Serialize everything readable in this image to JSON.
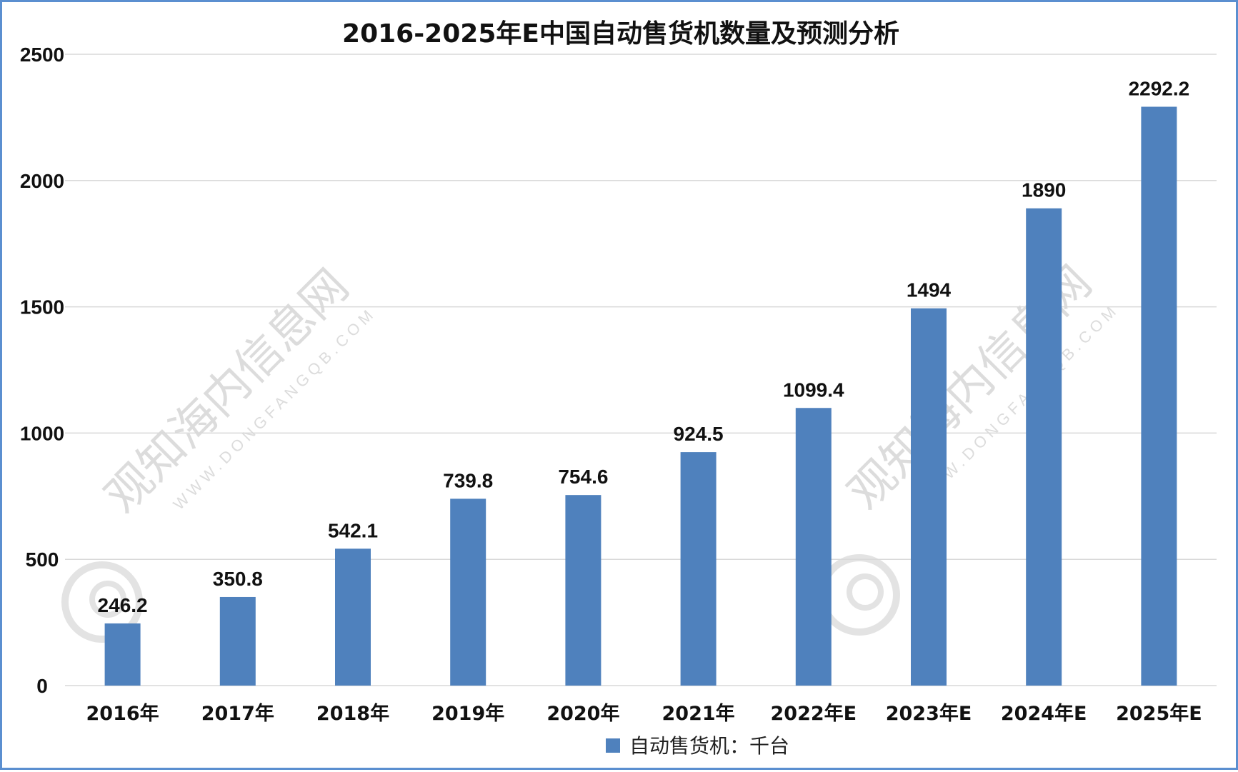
{
  "chart_data": {
    "type": "bar",
    "title": "2016-2025年E中国自动售货机数量及预测分析",
    "categories": [
      "2016年",
      "2017年",
      "2018年",
      "2019年",
      "2020年",
      "2021年",
      "2022年E",
      "2023年E",
      "2024年E",
      "2025年E"
    ],
    "series": [
      {
        "name": "自动售货机：千台",
        "values": [
          246.2,
          350.8,
          542.1,
          739.8,
          754.6,
          924.5,
          1099.4,
          1494,
          1890,
          2292.2
        ],
        "labels": [
          "246.2",
          "350.8",
          "542.1",
          "739.8",
          "754.6",
          "924.5",
          "1099.4",
          "1494",
          "1890",
          "2292.2"
        ],
        "color": "#4f81bd"
      }
    ],
    "ylim": [
      0,
      2500
    ],
    "yticks": [
      "0",
      "500",
      "1000",
      "1500",
      "2000",
      "2500"
    ],
    "ytick_values": [
      0,
      500,
      1000,
      1500,
      2000,
      2500
    ],
    "grid": true,
    "legend": "bottom-center",
    "gridline_color": "#d9d9d9",
    "border_color": "#5b8fd0"
  },
  "watermark": {
    "text": "观知海内信息网",
    "url": "WWW.DONGFANGQB.COM"
  }
}
